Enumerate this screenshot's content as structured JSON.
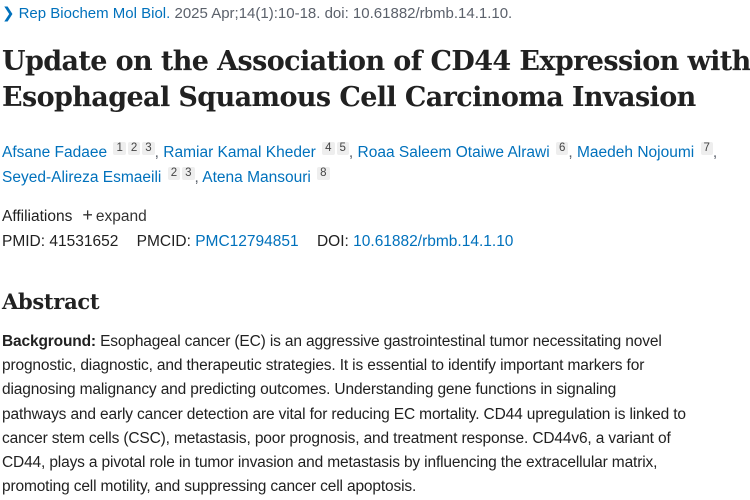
{
  "citation": {
    "chevron_icon": "chevron-right-icon",
    "journal": "Rep Biochem Mol Biol.",
    "details": " 2025 Apr;14(1):10-18. doi: 10.61882/rbmb.14.1.10."
  },
  "article": {
    "title_line1": "Update on the Association of CD44 Expression with",
    "title_line2": "Esophageal Squamous Cell Carcinoma Invasion"
  },
  "authors": [
    {
      "name": "Afsane Fadaee",
      "affiliations": [
        "1",
        "2",
        "3"
      ]
    },
    {
      "name": "Ramiar Kamal Kheder",
      "affiliations": [
        "4",
        "5"
      ]
    },
    {
      "name": "Roaa Saleem Otaiwe Alrawi",
      "affiliations": [
        "6"
      ]
    },
    {
      "name": "Maedeh Nojoumi",
      "affiliations": [
        "7"
      ]
    },
    {
      "name": "Seyed-Alireza Esmaeili",
      "affiliations": [
        "2",
        "3"
      ]
    },
    {
      "name": "Atena Mansouri",
      "affiliations": [
        "8"
      ]
    }
  ],
  "affiliations": {
    "label": "Affiliations",
    "expand_icon": "plus-icon",
    "expand_label": "expand"
  },
  "identifiers": {
    "pmid_label": "PMID:",
    "pmid": "41531652",
    "pmcid_label": "PMCID:",
    "pmcid": "PMC12794851",
    "doi_label": "DOI:",
    "doi": "10.61882/rbmb.14.1.10"
  },
  "abstract": {
    "heading": "Abstract",
    "background_label": "Background:",
    "lines": [
      " Esophageal cancer (EC) is an aggressive gastrointestinal tumor necessitating novel",
      "prognostic, diagnostic, and therapeutic strategies. It is essential to identify important markers for",
      "diagnosing malignancy and predicting outcomes. Understanding gene functions in signaling",
      "pathways and early cancer detection are vital for reducing EC mortality. CD44 upregulation is linked to",
      "cancer stem cells (CSC), metastasis, poor prognosis, and treatment response. CD44v6, a variant of",
      "CD44, plays a pivotal role in tumor invasion and metastasis by influencing the extracellular matrix,",
      "promoting cell motility, and suppressing cancer cell apoptosis."
    ]
  },
  "colors": {
    "link": "#0071bc",
    "text": "#212121",
    "muted": "#5b616b",
    "badge_bg": "#eeeeee"
  }
}
